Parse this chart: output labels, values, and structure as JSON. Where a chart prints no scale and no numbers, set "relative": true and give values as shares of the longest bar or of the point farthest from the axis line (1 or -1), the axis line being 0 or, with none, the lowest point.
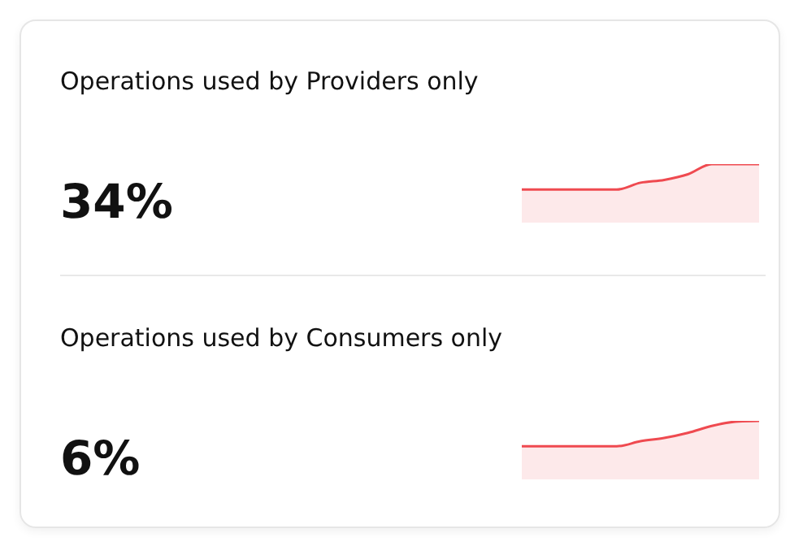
{
  "chart_data": [
    {
      "type": "area",
      "title": "Operations used by Providers only",
      "annotations": [
        "34%"
      ],
      "relative": true,
      "categories": [
        null,
        null,
        null,
        null,
        null,
        null,
        null,
        null,
        null,
        null,
        null
      ],
      "series": [
        {
          "color": "#ef4a50",
          "values": [
            0,
            0,
            0,
            0,
            0,
            0.27,
            0.38,
            0.6,
            1,
            1,
            1
          ]
        }
      ]
    },
    {
      "type": "area",
      "title": "Operations used by Consumers only",
      "annotations": [
        "6%"
      ],
      "relative": true,
      "categories": [
        null,
        null,
        null,
        null,
        null,
        null,
        null,
        null,
        null,
        null,
        null
      ],
      "series": [
        {
          "color": "#ef4a50",
          "values": [
            0,
            0,
            0,
            0,
            0,
            0.2,
            0.33,
            0.53,
            0.8,
            0.97,
            1
          ]
        }
      ]
    }
  ]
}
